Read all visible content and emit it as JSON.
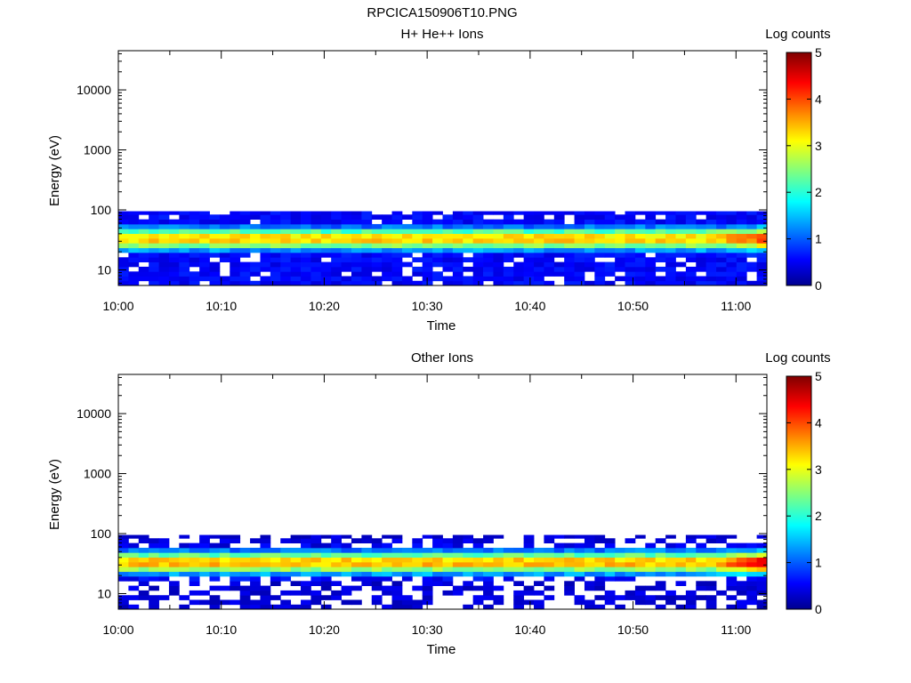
{
  "figure": {
    "title": "RPCICA150906T10.PNG"
  },
  "chart_data": [
    {
      "type": "heatmap",
      "title": "H+ He++ Ions",
      "xlabel": "Time",
      "ylabel": "Energy (eV)",
      "x_ticks": [
        "10:00",
        "10:10",
        "10:20",
        "10:30",
        "10:40",
        "10:50",
        "11:00"
      ],
      "x_range": [
        "10:00",
        "11:03"
      ],
      "y_scale": "log",
      "y_ticks": [
        "10",
        "100",
        "1000",
        "10000"
      ],
      "y_range": [
        5.5,
        45000
      ],
      "colorbar": {
        "label": "Log counts",
        "range": [
          0,
          5
        ],
        "ticks": [
          "0",
          "1",
          "2",
          "3",
          "4",
          "5"
        ]
      },
      "energy_rows_eV": [
        6,
        7.2,
        8.6,
        10.3,
        12.4,
        14.8,
        17.8,
        21.3,
        25.6,
        30.7,
        36.8,
        44.2,
        53,
        63.6,
        76.3,
        91.6
      ],
      "time_bins": 64,
      "peak_energy_eV": 33,
      "peak_log_counts": 3.4,
      "end_peak_log_counts": 4.1,
      "signal_upper_cutoff_eV": 95,
      "background_log_counts": 0.45
    },
    {
      "type": "heatmap",
      "title": "Other Ions",
      "xlabel": "Time",
      "ylabel": "Energy (eV)",
      "x_ticks": [
        "10:00",
        "10:10",
        "10:20",
        "10:30",
        "10:40",
        "10:50",
        "11:00"
      ],
      "x_range": [
        "10:00",
        "11:03"
      ],
      "y_scale": "log",
      "y_ticks": [
        "10",
        "100",
        "1000",
        "10000"
      ],
      "y_range": [
        5.5,
        45000
      ],
      "colorbar": {
        "label": "Log counts",
        "range": [
          0,
          5
        ],
        "ticks": [
          "0",
          "1",
          "2",
          "3",
          "4",
          "5"
        ]
      },
      "energy_rows_eV": [
        6,
        7.2,
        8.6,
        10.3,
        12.4,
        14.8,
        17.8,
        21.3,
        25.6,
        30.7,
        36.8,
        44.2,
        53,
        63.6,
        76.3,
        91.6
      ],
      "time_bins": 64,
      "peak_energy_eV": 33,
      "peak_log_counts": 3.5,
      "end_peak_log_counts": 4.5,
      "signal_upper_cutoff_eV": 95,
      "background_log_counts": 0.25
    }
  ]
}
